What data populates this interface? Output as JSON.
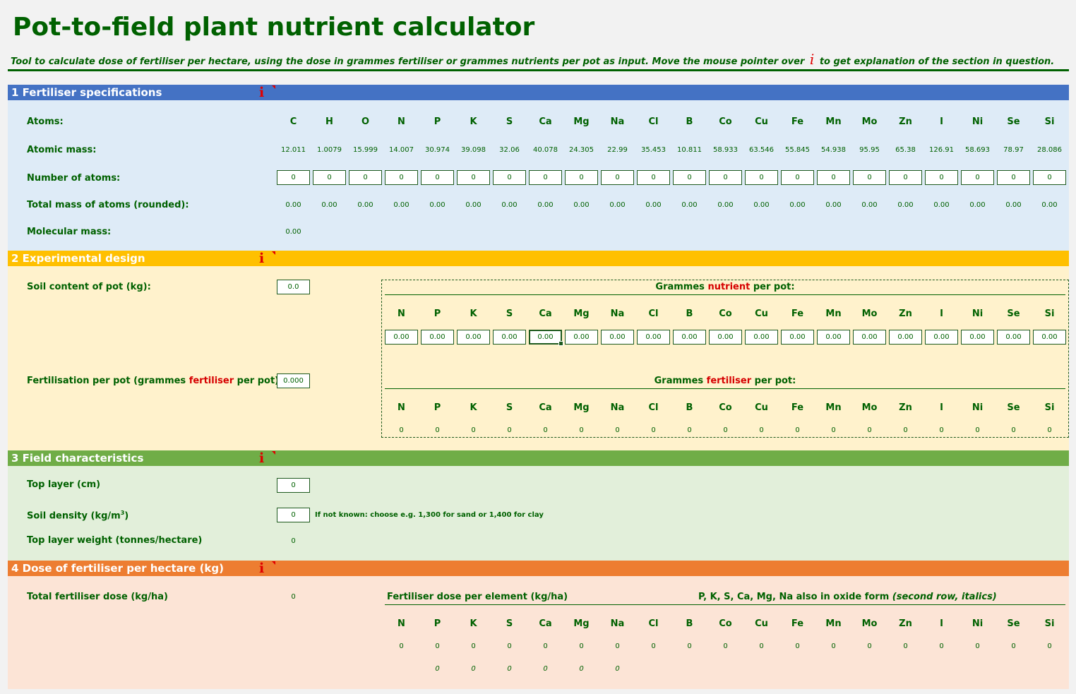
{
  "title": "Pot-to-field plant nutrient calculator",
  "subtitle_pre": "Tool to calculate dose of fertiliser per hectare, using the dose in grammes fertiliser or grammes nutrients per pot as input. Move the mouse pointer over",
  "subtitle_info": "i",
  "subtitle_post": "to get explanation of the section in question.",
  "colors": {
    "sec1": "#4472c4",
    "sec1_bg": "#deebf7",
    "sec2": "#ffc000",
    "sec2_bg": "#fff2cc",
    "sec3": "#70ad47",
    "sec3_bg": "#e2efda",
    "sec4": "#ed7d31",
    "sec4_bg": "#fce4d6",
    "text": "#006100",
    "accent_red": "#d60000"
  },
  "info_glyph": "i",
  "sec1": {
    "title": "1  Fertiliser specifications",
    "atoms_label": "Atoms:",
    "mass_label": "Atomic mass:",
    "number_label": "Number of atoms:",
    "total_label": "Total mass of atoms (rounded):",
    "molecular_label": "Molecular mass:",
    "molecular_value": "0.00",
    "atoms": [
      {
        "sym": "C",
        "mass": "12.011",
        "n": "0",
        "total": "0.00"
      },
      {
        "sym": "H",
        "mass": "1.0079",
        "n": "0",
        "total": "0.00"
      },
      {
        "sym": "O",
        "mass": "15.999",
        "n": "0",
        "total": "0.00"
      },
      {
        "sym": "N",
        "mass": "14.007",
        "n": "0",
        "total": "0.00"
      },
      {
        "sym": "P",
        "mass": "30.974",
        "n": "0",
        "total": "0.00"
      },
      {
        "sym": "K",
        "mass": "39.098",
        "n": "0",
        "total": "0.00"
      },
      {
        "sym": "S",
        "mass": "32.06",
        "n": "0",
        "total": "0.00"
      },
      {
        "sym": "Ca",
        "mass": "40.078",
        "n": "0",
        "total": "0.00"
      },
      {
        "sym": "Mg",
        "mass": "24.305",
        "n": "0",
        "total": "0.00"
      },
      {
        "sym": "Na",
        "mass": "22.99",
        "n": "0",
        "total": "0.00"
      },
      {
        "sym": "Cl",
        "mass": "35.453",
        "n": "0",
        "total": "0.00"
      },
      {
        "sym": "B",
        "mass": "10.811",
        "n": "0",
        "total": "0.00"
      },
      {
        "sym": "Co",
        "mass": "58.933",
        "n": "0",
        "total": "0.00"
      },
      {
        "sym": "Cu",
        "mass": "63.546",
        "n": "0",
        "total": "0.00"
      },
      {
        "sym": "Fe",
        "mass": "55.845",
        "n": "0",
        "total": "0.00"
      },
      {
        "sym": "Mn",
        "mass": "54.938",
        "n": "0",
        "total": "0.00"
      },
      {
        "sym": "Mo",
        "mass": "95.95",
        "n": "0",
        "total": "0.00"
      },
      {
        "sym": "Zn",
        "mass": "65.38",
        "n": "0",
        "total": "0.00"
      },
      {
        "sym": "I",
        "mass": "126.91",
        "n": "0",
        "total": "0.00"
      },
      {
        "sym": "Ni",
        "mass": "58.693",
        "n": "0",
        "total": "0.00"
      },
      {
        "sym": "Se",
        "mass": "78.97",
        "n": "0",
        "total": "0.00"
      },
      {
        "sym": "Si",
        "mass": "28.086",
        "n": "0",
        "total": "0.00"
      }
    ]
  },
  "nutrients": [
    "N",
    "P",
    "K",
    "S",
    "Ca",
    "Mg",
    "Na",
    "Cl",
    "B",
    "Co",
    "Cu",
    "Fe",
    "Mn",
    "Mo",
    "Zn",
    "I",
    "Ni",
    "Se",
    "Si"
  ],
  "sec2": {
    "title": "2  Experimental design",
    "soil_label": "Soil content of pot (kg):",
    "soil_value": "0.0",
    "fert_label_pre": "Fertilisation per pot (grammes ",
    "fert_label_red": "fertiliser",
    "fert_label_post": " per pot):",
    "fert_value": "0.000",
    "nutrient_head_pre": "Grammes ",
    "nutrient_head_red": "nutrient",
    "nutrient_head_post": " per pot:",
    "fert_head_pre": "Grammes ",
    "fert_head_red": "fertiliser",
    "fert_head_post": " per pot:",
    "nutrient_values": [
      "0.00",
      "0.00",
      "0.00",
      "0.00",
      "0.00",
      "0.00",
      "0.00",
      "0.00",
      "0.00",
      "0.00",
      "0.00",
      "0.00",
      "0.00",
      "0.00",
      "0.00",
      "0.00",
      "0.00",
      "0.00",
      "0.00"
    ],
    "selected_index": 4,
    "fert_values": [
      "0",
      "0",
      "0",
      "0",
      "0",
      "0",
      "0",
      "0",
      "0",
      "0",
      "0",
      "0",
      "0",
      "0",
      "0",
      "0",
      "0",
      "0",
      "0"
    ]
  },
  "sec3": {
    "title": "3  Field characteristics",
    "top_layer_label": "Top layer (cm)",
    "top_layer_value": "0",
    "density_label": "Soil density (kg/m",
    "density_sup": "3",
    "density_label_end": ")",
    "density_value": "0",
    "density_note": "If not known: choose e.g. 1,300 for sand or 1,400 for clay",
    "weight_label": "Top layer weight (tonnes/hectare)",
    "weight_value": "0"
  },
  "sec4": {
    "title": "4  Dose of fertiliser per hectare (kg)",
    "total_label": "Total fertiliser dose (kg/ha)",
    "total_value": "0",
    "element_head": "Fertiliser dose per element (kg/ha)",
    "oxide_head_pre": "P, K, S, Ca, Mg, Na also in oxide form ",
    "oxide_head_ital": "(second row, italics)",
    "values": [
      "0",
      "0",
      "0",
      "0",
      "0",
      "0",
      "0",
      "0",
      "0",
      "0",
      "0",
      "0",
      "0",
      "0",
      "0",
      "0",
      "0",
      "0",
      "0"
    ],
    "oxide_values": [
      "",
      "0",
      "0",
      "0",
      "0",
      "0",
      "0",
      "",
      "",
      "",
      "",
      "",
      "",
      "",
      "",
      "",
      "",
      "",
      ""
    ]
  }
}
